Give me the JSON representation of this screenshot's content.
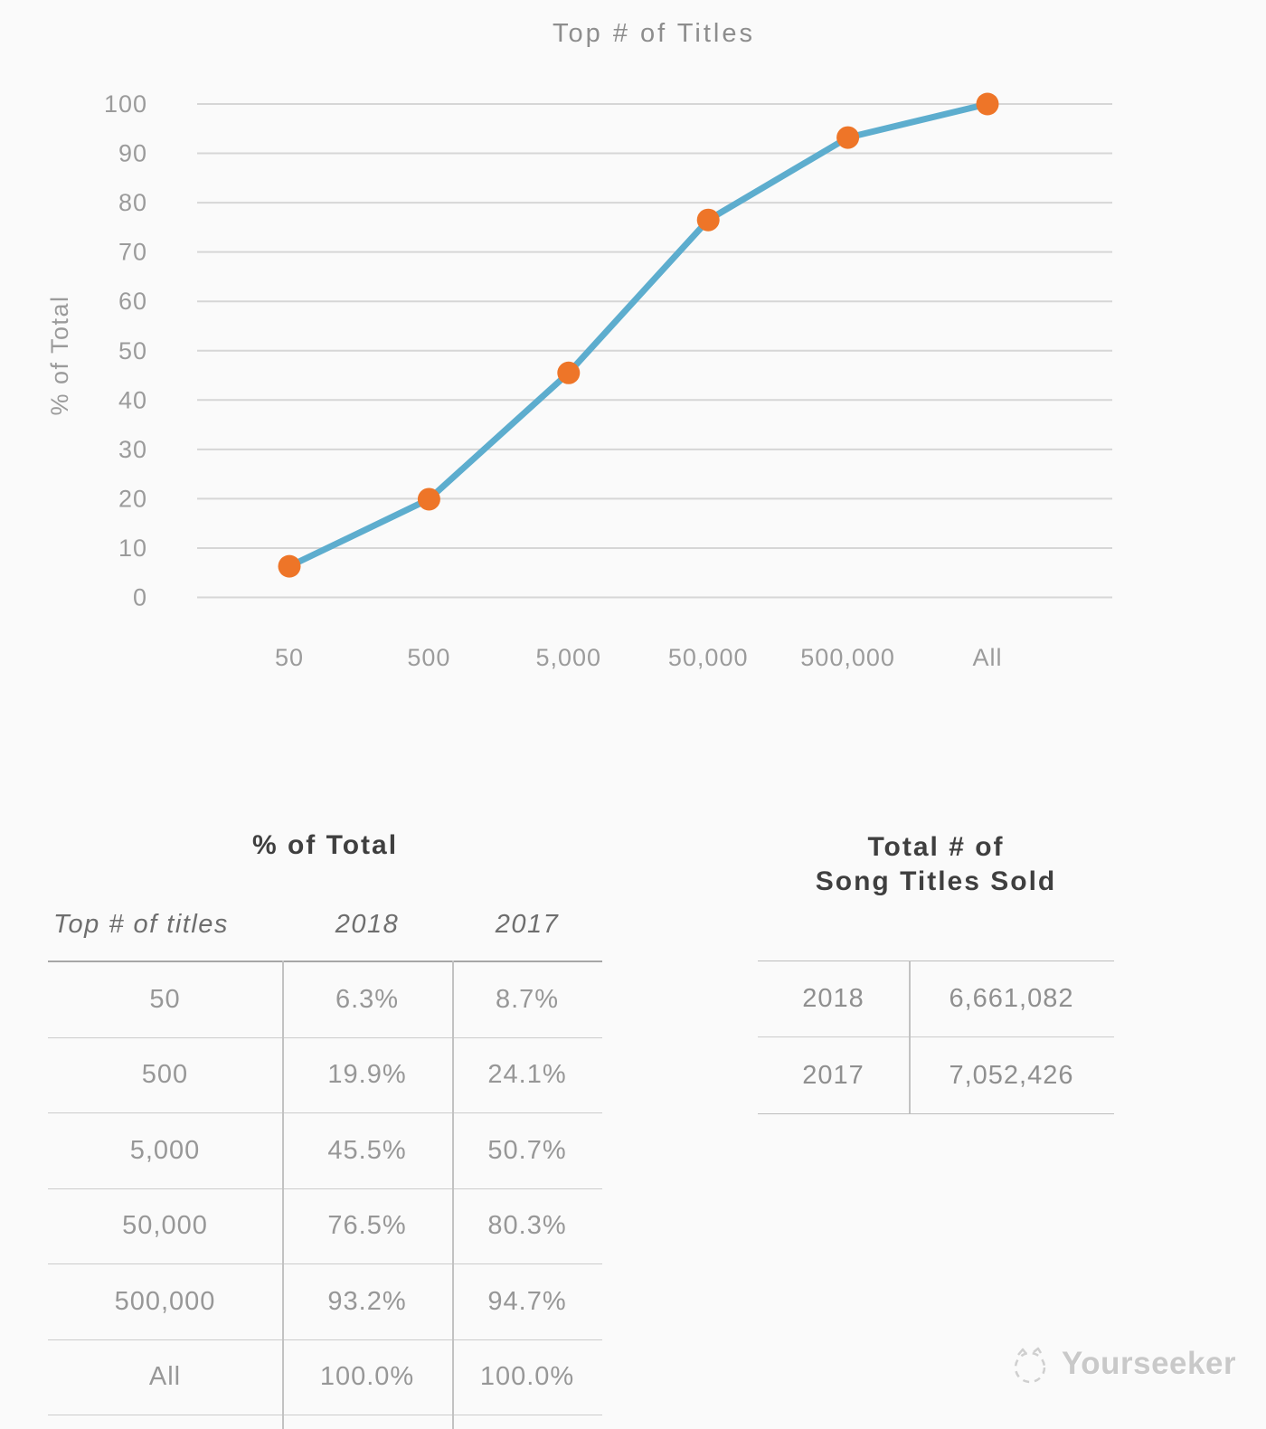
{
  "chart_data": {
    "type": "line",
    "title": "Top # of Titles",
    "xlabel": "",
    "ylabel": "% of Total",
    "categories": [
      "50",
      "500",
      "5,000",
      "50,000",
      "500,000",
      "All"
    ],
    "series": [
      {
        "name": "2018",
        "values": [
          6.3,
          19.9,
          45.5,
          76.5,
          93.2,
          100.0
        ]
      }
    ],
    "ylim": [
      0,
      100
    ],
    "ytick_step": 10,
    "grid": true,
    "legend": false,
    "line_color": "#5dadce",
    "point_color": "#ee7528",
    "grid_color": "#d6d6d6",
    "axis_text_color": "#9b9b9b",
    "title_color": "#8d8d8d"
  },
  "left_table": {
    "title": "% of Total",
    "columns": {
      "c1": "Top # of titles",
      "c2": "2018",
      "c3": "2017"
    },
    "rows": [
      {
        "titles": "50",
        "pct_2018": "6.3%",
        "pct_2017": "8.7%"
      },
      {
        "titles": "500",
        "pct_2018": "19.9%",
        "pct_2017": "24.1%"
      },
      {
        "titles": "5,000",
        "pct_2018": "45.5%",
        "pct_2017": "50.7%"
      },
      {
        "titles": "50,000",
        "pct_2018": "76.5%",
        "pct_2017": "80.3%"
      },
      {
        "titles": "500,000",
        "pct_2018": "93.2%",
        "pct_2017": "94.7%"
      },
      {
        "titles": "All",
        "pct_2018": "100.0%",
        "pct_2017": "100.0%"
      }
    ]
  },
  "right_table": {
    "title_line1": "Total # of",
    "title_line2": "Song Titles Sold",
    "rows": [
      {
        "year": "2018",
        "value": "6,661,082"
      },
      {
        "year": "2017",
        "value": "7,052,426"
      }
    ]
  },
  "watermark": {
    "text": "Yourseeker"
  }
}
